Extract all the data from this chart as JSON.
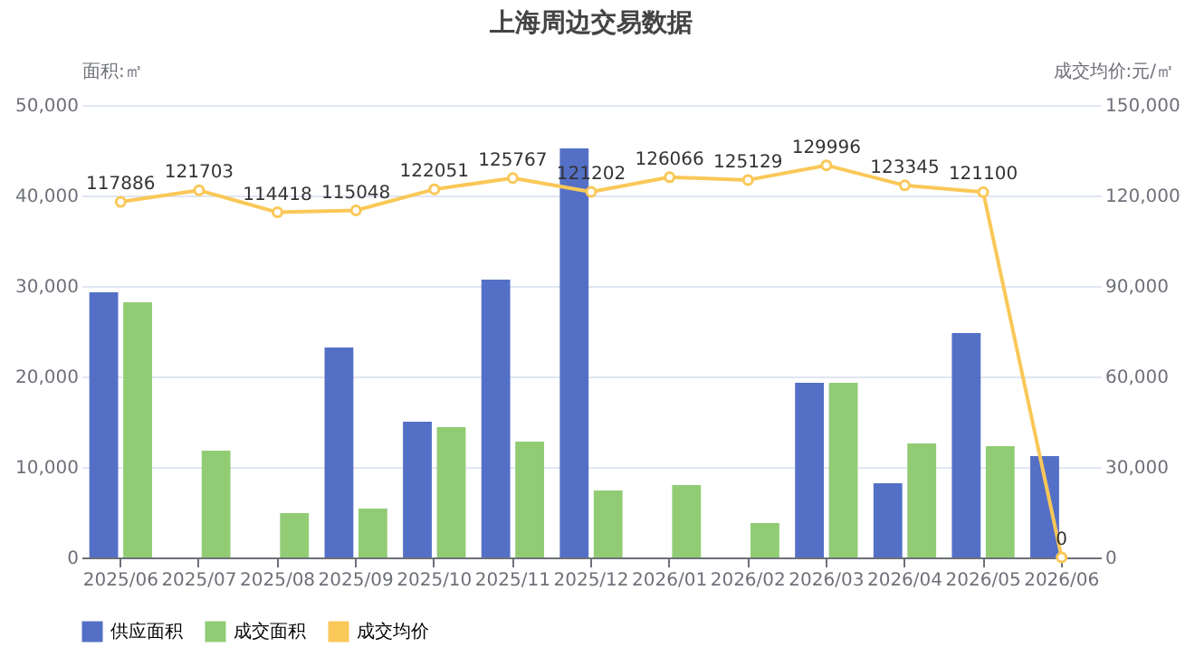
{
  "chart_data": {
    "type": "bar",
    "title": "上海周边交易数据",
    "ylabel": "面积:㎡",
    "y2label": "成交均价:元/㎡",
    "categories": [
      "2025/06",
      "2025/07",
      "2025/08",
      "2025/09",
      "2025/10",
      "2025/11",
      "2025/12",
      "2026/01",
      "2026/02",
      "2026/03",
      "2026/04",
      "2026/05",
      "2026/06"
    ],
    "series": [
      {
        "name": "供应面积",
        "color": "#5470c6",
        "values": [
          29300,
          null,
          null,
          23200,
          15000,
          30700,
          45200,
          null,
          null,
          19300,
          8200,
          24800,
          11200
        ]
      },
      {
        "name": "成交面积",
        "color": "#91cc75",
        "values": [
          28200,
          11800,
          4900,
          5400,
          14400,
          12800,
          7400,
          8000,
          3800,
          19300,
          12600,
          12300,
          null
        ]
      },
      {
        "name": "成交均价",
        "type": "line",
        "axis": "y2",
        "color": "#fac858",
        "values": [
          117886,
          121703,
          114418,
          115048,
          122051,
          125767,
          121202,
          126066,
          125129,
          129996,
          123345,
          121100,
          0
        ],
        "value_labels": [
          "117886",
          "121703",
          "114418",
          "115048",
          "122051",
          "125767",
          "121202",
          "126066",
          "125129",
          "129996",
          "123345",
          "121100",
          "0"
        ]
      }
    ],
    "marker": "circle",
    "ylim": [
      0,
      50000
    ],
    "yticks": [
      0,
      {
        "value": 10000,
        "label": "10,000"
      },
      {
        "value": 20000,
        "label": "20,000"
      },
      {
        "value": 30000,
        "label": "30,000"
      },
      {
        "value": 40000,
        "label": "40,000"
      },
      {
        "value": 50000,
        "label": "50,000"
      }
    ],
    "y2lim": [
      0,
      150000
    ],
    "y2ticks": [
      0,
      {
        "value": 30000,
        "label": "30,000"
      },
      {
        "value": 60000,
        "label": "60,000"
      },
      {
        "value": 90000,
        "label": "90,000"
      },
      {
        "value": 120000,
        "label": "120,000"
      },
      {
        "value": 150000,
        "label": "150,000"
      }
    ],
    "grid": "y",
    "legend": "bottom"
  }
}
